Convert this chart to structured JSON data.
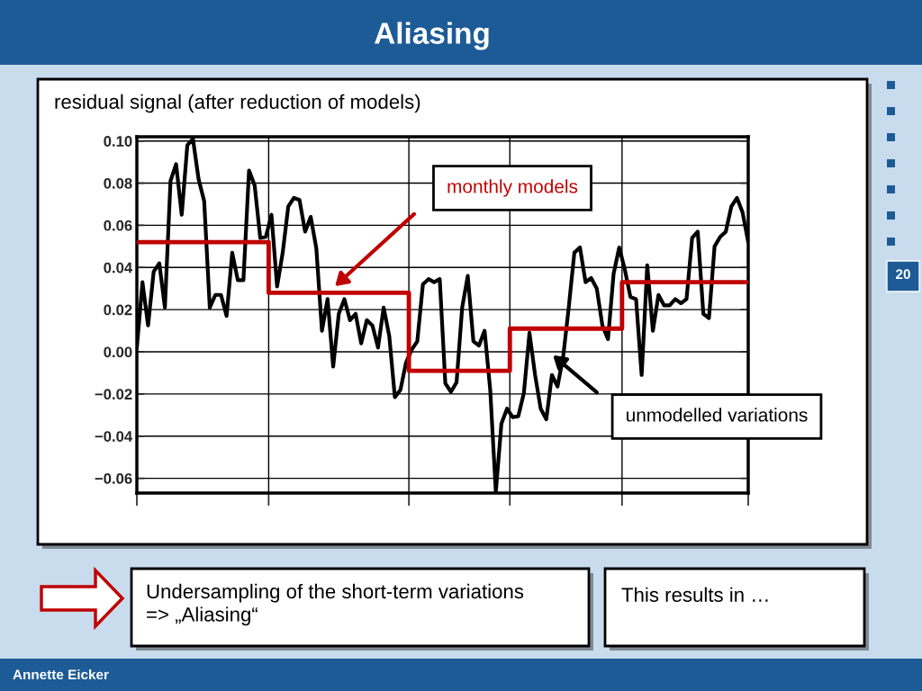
{
  "chart_data": {
    "type": "line",
    "title": "Aliasing",
    "subtitle": "residual signal (after reduction of models)",
    "categories": [
      null,
      null,
      null,
      null,
      null,
      null,
      null,
      null,
      null,
      null,
      null,
      null,
      null,
      null,
      null,
      null,
      null,
      null,
      null,
      null,
      null,
      null,
      null,
      null,
      null,
      null,
      null,
      null,
      null,
      null,
      null,
      null,
      null,
      null,
      null,
      null,
      null,
      null,
      null,
      null,
      null,
      null,
      null,
      null,
      null,
      null,
      null,
      null,
      null,
      null,
      null,
      null,
      null,
      null,
      null,
      null,
      null,
      null,
      null,
      null,
      null,
      null,
      null,
      null,
      null,
      null,
      null,
      null,
      null,
      null,
      null,
      null,
      null,
      null,
      null,
      null,
      null,
      null,
      null,
      null,
      null,
      null,
      null,
      null,
      null,
      null,
      null,
      null,
      null,
      null,
      null,
      null,
      null,
      null,
      null,
      null,
      null,
      null,
      null,
      null,
      null,
      null,
      null,
      null,
      null,
      null,
      null,
      null,
      null,
      null
    ],
    "ylim": [
      -0.067,
      0.102
    ],
    "yticks": [
      {
        "value": 0.1,
        "label": "0.10"
      },
      {
        "value": 0.08,
        "label": "0.08"
      },
      {
        "value": 0.06,
        "label": "0.06"
      },
      {
        "value": 0.04,
        "label": "0.04"
      },
      {
        "value": 0.02,
        "label": "0.02"
      },
      {
        "value": 0.0,
        "label": "0.00"
      },
      {
        "value": -0.02,
        "label": "−0.02"
      },
      {
        "value": -0.04,
        "label": "−0.04"
      },
      {
        "value": -0.06,
        "label": "−0.06"
      }
    ],
    "tick_labels": "y",
    "grid": true,
    "series": [
      {
        "color": "#000000",
        "values": [
          0.002,
          0.033,
          0.0125,
          0.038,
          0.042,
          0.021,
          0.081,
          0.089,
          0.065,
          0.098,
          0.101,
          0.082,
          0.0715,
          0.021,
          0.027,
          0.027,
          0.017,
          0.047,
          0.034,
          0.034,
          0.086,
          0.079,
          0.054,
          0.0545,
          0.065,
          0.031,
          0.047,
          0.069,
          0.073,
          0.072,
          0.057,
          0.064,
          0.049,
          0.01,
          0.025,
          -0.007,
          0.018,
          0.025,
          0.015,
          0.018,
          0.004,
          0.015,
          0.0125,
          0.002,
          0.021,
          0.0075,
          -0.0215,
          -0.018,
          -0.005,
          0.001,
          0.005,
          0.032,
          0.0345,
          0.033,
          0.0345,
          -0.015,
          -0.019,
          -0.0145,
          0.021,
          0.036,
          0.005,
          0.003,
          0.01,
          -0.018,
          -0.0664,
          -0.034,
          -0.027,
          -0.031,
          -0.0306,
          -0.0195,
          0.009,
          -0.011,
          -0.027,
          -0.032,
          -0.011,
          -0.0165,
          -0.0025,
          0.021,
          0.047,
          0.0495,
          0.033,
          0.035,
          0.03,
          0.0125,
          0.006,
          0.037,
          0.0495,
          0.039,
          0.026,
          0.025,
          -0.011,
          0.041,
          0.01,
          0.027,
          0.022,
          0.022,
          0.025,
          0.023,
          0.025,
          0.054,
          0.057,
          0.018,
          0.016,
          0.05,
          0.0545,
          0.057,
          0.069,
          0.073,
          0.066,
          0.052
        ]
      },
      {
        "type": "step",
        "color": "#c00000",
        "values": [
          0.052,
          0.052,
          0.052,
          0.052,
          0.052,
          0.052,
          0.052,
          0.052,
          0.052,
          0.052,
          0.052,
          0.052,
          0.052,
          0.052,
          0.052,
          0.052,
          0.052,
          0.052,
          0.052,
          0.052,
          0.052,
          0.052,
          0.052,
          0.052,
          0.028,
          0.028,
          0.028,
          0.028,
          0.028,
          0.028,
          0.028,
          0.028,
          0.028,
          0.028,
          0.028,
          0.028,
          0.028,
          0.028,
          0.028,
          0.028,
          0.028,
          0.028,
          0.028,
          0.028,
          0.028,
          0.028,
          0.028,
          0.028,
          0.028,
          -0.009,
          -0.009,
          -0.009,
          -0.009,
          -0.009,
          -0.009,
          -0.009,
          -0.009,
          -0.009,
          -0.009,
          -0.009,
          -0.009,
          -0.009,
          -0.009,
          -0.009,
          -0.009,
          -0.009,
          -0.009,
          0.011,
          0.011,
          0.011,
          0.011,
          0.011,
          0.011,
          0.011,
          0.011,
          0.011,
          0.011,
          0.011,
          0.011,
          0.011,
          0.011,
          0.011,
          0.011,
          0.011,
          0.011,
          0.011,
          0.011,
          0.033,
          0.033,
          0.033,
          0.033,
          0.033,
          0.033,
          0.033,
          0.033,
          0.033,
          0.033,
          0.033,
          0.033,
          0.033,
          0.033,
          0.033,
          0.033,
          0.033,
          0.033,
          0.033,
          0.033,
          0.033,
          0.033,
          0.033
        ]
      }
    ],
    "annotations": [
      "monthly models",
      "unmodelled variations",
      "Undersampling of the short-term variations\n=> „Aliasing“",
      "This results in …",
      "20",
      "Annette Eicker"
    ]
  }
}
